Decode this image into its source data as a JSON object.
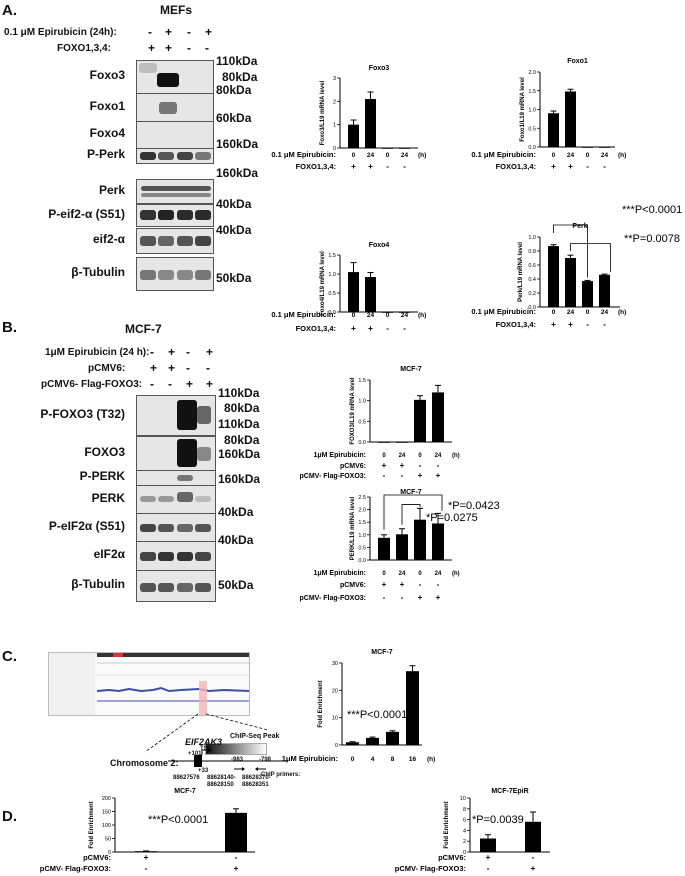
{
  "panels": {
    "A": {
      "letter": "A.",
      "cell_line": "MEFs",
      "header": {
        "treatment_label": "0.1 μM Epirubicin (24h):",
        "treatment_signs": [
          "-",
          "+",
          "-",
          "+"
        ],
        "genotype_label": "FOXO1,3,4:",
        "genotype_signs": [
          "+",
          "+",
          "-",
          "-"
        ]
      },
      "blots": [
        {
          "name": "Foxo3",
          "kda": "110kDa",
          "kda2": "80kDa"
        },
        {
          "name": "Foxo1",
          "kda": "80kDa"
        },
        {
          "name": "Foxo4",
          "kda": "60kDa"
        },
        {
          "name": "P-Perk",
          "kda": "160kDa"
        },
        {
          "name": "Perk",
          "kda": "160kDa"
        },
        {
          "name": "P-eif2-α (S51)",
          "kda": "40kDa"
        },
        {
          "name": "eif2-α",
          "kda": "40kDa"
        },
        {
          "name": "β-Tubulin",
          "kda": "50kDa"
        }
      ]
    },
    "B": {
      "letter": "B.",
      "cell_line": "MCF-7",
      "header": {
        "treatment_label": "1μM Epirubicin (24 h):",
        "treatment_signs": [
          "-",
          "+",
          "-",
          "+"
        ],
        "vector_label": "pCMV6:",
        "vector_signs": [
          "+",
          "+",
          "-",
          "-"
        ],
        "foxo_label": "pCMV6- Flag-FOXO3:",
        "foxo_signs": [
          "-",
          "-",
          "+",
          "+"
        ]
      },
      "blots": [
        {
          "name": "P-FOXO3 (T32)",
          "kda": "110kDa",
          "kda2": "80kDa"
        },
        {
          "name": "FOXO3",
          "kda": "110kDa",
          "kda2": "80kDa"
        },
        {
          "name": "P-PERK",
          "kda": "160kDa"
        },
        {
          "name": "PERK",
          "kda": "160kDa"
        },
        {
          "name": "P-eIF2α (S51)",
          "kda": "40kDa"
        },
        {
          "name": "eIF2α",
          "kda": "40kDa"
        },
        {
          "name": "β-Tubulin",
          "kda": "50kDa"
        }
      ]
    },
    "C": {
      "letter": "C.",
      "genome": {
        "gene": "EIF2AK3",
        "chromosome": "Chromosome 2:",
        "tss": "TSS",
        "pos_plus": "+101",
        "pos_plus2": "+33",
        "peak_label": "ChIP-Seq Peak",
        "primer_label": "ChIP primers:",
        "offsets": [
          "-983",
          "-798"
        ],
        "coords": [
          "88627576",
          "88628140-",
          "88628150",
          "88628370-",
          "88628351"
        ]
      }
    },
    "D": {
      "letter": "D."
    }
  },
  "chart_data": [
    {
      "id": "A-foxo3",
      "type": "bar",
      "title": "Foxo3",
      "ylabel": "Foxo3/L19 mRNA level",
      "ylim": [
        0,
        3
      ],
      "yticks": [
        "0",
        "1",
        "2",
        "3"
      ],
      "x": [
        "0",
        "24",
        "0",
        "24"
      ],
      "x_unit": "(h)",
      "values": [
        1.0,
        2.1,
        0.0,
        0.0
      ],
      "errors": [
        0.2,
        0.3,
        0,
        0
      ],
      "rows": [
        {
          "label": "0.1 μM Epirubicin:",
          "show_x": true
        },
        {
          "label": "FOXO1,3,4:",
          "signs": [
            "+",
            "+",
            "-",
            "-"
          ]
        }
      ],
      "annotations": []
    },
    {
      "id": "A-foxo1",
      "type": "bar",
      "title": "Foxo1",
      "ylabel": "Foxo1/L19 mRNA level",
      "ylim": [
        0,
        2
      ],
      "yticks": [
        "0.0",
        "0.5",
        "1.0",
        "1.5",
        "2.0"
      ],
      "x": [
        "0",
        "24",
        "0",
        "24"
      ],
      "x_unit": "(h)",
      "values": [
        0.9,
        1.48,
        0.0,
        0.0
      ],
      "errors": [
        0.06,
        0.06,
        0,
        0
      ],
      "rows": [
        {
          "label": "0.1 μM Epirubicin:",
          "show_x": true
        },
        {
          "label": "FOXO1,3,4:",
          "signs": [
            "+",
            "+",
            "-",
            "-"
          ]
        }
      ],
      "annotations": []
    },
    {
      "id": "A-foxo4",
      "type": "bar",
      "title": "Foxo4",
      "ylabel": "Foxo4/L19 mRNA level",
      "ylim": [
        0,
        1.5
      ],
      "yticks": [
        "0.0",
        "0.5",
        "1.0",
        "1.5"
      ],
      "x": [
        "0",
        "24",
        "0",
        "24"
      ],
      "x_unit": "(h)",
      "values": [
        1.05,
        0.92,
        0.0,
        0.0
      ],
      "errors": [
        0.25,
        0.12,
        0,
        0
      ],
      "rows": [
        {
          "label": "0.1 μM Epirubicin:",
          "show_x": true
        },
        {
          "label": "FOXO1,3,4:",
          "signs": [
            "+",
            "+",
            "-",
            "-"
          ]
        }
      ],
      "annotations": []
    },
    {
      "id": "A-perk",
      "type": "bar",
      "title": "Perk",
      "ylabel": "Perk/L19 mRNA level",
      "ylim": [
        0,
        1.0
      ],
      "yticks": [
        "0.0",
        "0.2",
        "0.4",
        "0.6",
        "0.8",
        "1.0"
      ],
      "x": [
        "0",
        "24",
        "0",
        "24"
      ],
      "x_unit": "(h)",
      "values": [
        0.87,
        0.7,
        0.37,
        0.46
      ],
      "errors": [
        0.02,
        0.04,
        0.01,
        0.01
      ],
      "rows": [
        {
          "label": "0.1 μM Epirubicin:",
          "show_x": true
        },
        {
          "label": "FOXO1,3,4:",
          "signs": [
            "+",
            "+",
            "-",
            "-"
          ]
        }
      ],
      "annotations": [
        "***P<0.0001",
        "**P=0.0078"
      ]
    },
    {
      "id": "B-foxo3",
      "type": "bar",
      "title": "MCF-7",
      "ylabel": "FOXO3/L19 mRNA level",
      "ylim": [
        0,
        1.5
      ],
      "yticks": [
        "0.0",
        "0.5",
        "1.0",
        "1.5"
      ],
      "x": [
        "0",
        "24",
        "0",
        "24"
      ],
      "x_unit": "(h)",
      "values": [
        0.0,
        0.0,
        1.02,
        1.2
      ],
      "errors": [
        0,
        0,
        0.1,
        0.17
      ],
      "rows": [
        {
          "label": "1μM Epirubicin:",
          "show_x": true
        },
        {
          "label": "pCMV6:",
          "signs": [
            "+",
            "+",
            "-",
            "-"
          ]
        },
        {
          "label": "pCMV- Flag-FOXO3:",
          "signs": [
            "-",
            "-",
            "+",
            "+"
          ]
        }
      ],
      "annotations": []
    },
    {
      "id": "B-perk",
      "type": "bar",
      "title": "MCF-7",
      "ylabel": "PERK/L19 mRNA level",
      "ylim": [
        0,
        2.5
      ],
      "yticks": [
        "0.0",
        "0.5",
        "1.0",
        "1.5",
        "2.0",
        "2.5"
      ],
      "x": [
        "0",
        "24",
        "0",
        "24"
      ],
      "x_unit": "(h)",
      "values": [
        0.88,
        1.02,
        1.6,
        1.45
      ],
      "errors": [
        0.12,
        0.22,
        0.45,
        0.4
      ],
      "rows": [
        {
          "label": "1μM Epirubicin:",
          "show_x": true
        },
        {
          "label": "pCMV6:",
          "signs": [
            "+",
            "+",
            "-",
            "-"
          ]
        },
        {
          "label": "pCMV- Flag-FOXO3:",
          "signs": [
            "-",
            "-",
            "+",
            "+"
          ]
        }
      ],
      "annotations": [
        "*P=0.0423",
        "*P=0.0275"
      ]
    },
    {
      "id": "C-fold",
      "type": "bar",
      "title": "MCF-7",
      "ylabel": "Fold Enrichment",
      "ylim": [
        0,
        30
      ],
      "yticks": [
        "0",
        "10",
        "20",
        "30"
      ],
      "x": [
        "0",
        "4",
        "8",
        "16"
      ],
      "x_unit": "(h)",
      "values": [
        1.0,
        2.6,
        4.8,
        27.0
      ],
      "errors": [
        0.2,
        0.3,
        0.4,
        2.0
      ],
      "rows": [
        {
          "label": "1μM Epirubicin:",
          "show_x": true
        }
      ],
      "annotations": [
        "***P<0.0001"
      ]
    },
    {
      "id": "D-mcf7",
      "type": "bar",
      "title": "MCF-7",
      "ylabel": "Fold Enrichment",
      "ylim": [
        0,
        200
      ],
      "yticks": [
        "0",
        "50",
        "100",
        "150",
        "200"
      ],
      "x": [
        "",
        ""
      ],
      "x_unit": "",
      "values": [
        3.0,
        145.0
      ],
      "errors": [
        1.0,
        15.0
      ],
      "rows": [
        {
          "label": "pCMV6:",
          "signs": [
            "+",
            "-"
          ]
        },
        {
          "label": "pCMV- Flag-FOXO3:",
          "signs": [
            "-",
            "+"
          ]
        }
      ],
      "annotations": [
        "***P<0.0001"
      ]
    },
    {
      "id": "D-epir",
      "type": "bar",
      "title": "MCF-7EpiR",
      "ylabel": "Fold Enrichment",
      "ylim": [
        0,
        10
      ],
      "yticks": [
        "0",
        "2",
        "4",
        "6",
        "8",
        "10"
      ],
      "x": [
        "",
        ""
      ],
      "x_unit": "",
      "values": [
        2.5,
        5.6
      ],
      "errors": [
        0.7,
        1.8
      ],
      "rows": [
        {
          "label": "pCMV6:",
          "signs": [
            "+",
            "-"
          ]
        },
        {
          "label": "pCMV- Flag-FOXO3:",
          "signs": [
            "-",
            "+"
          ]
        }
      ],
      "annotations": [
        "*P=0.0039"
      ]
    }
  ]
}
